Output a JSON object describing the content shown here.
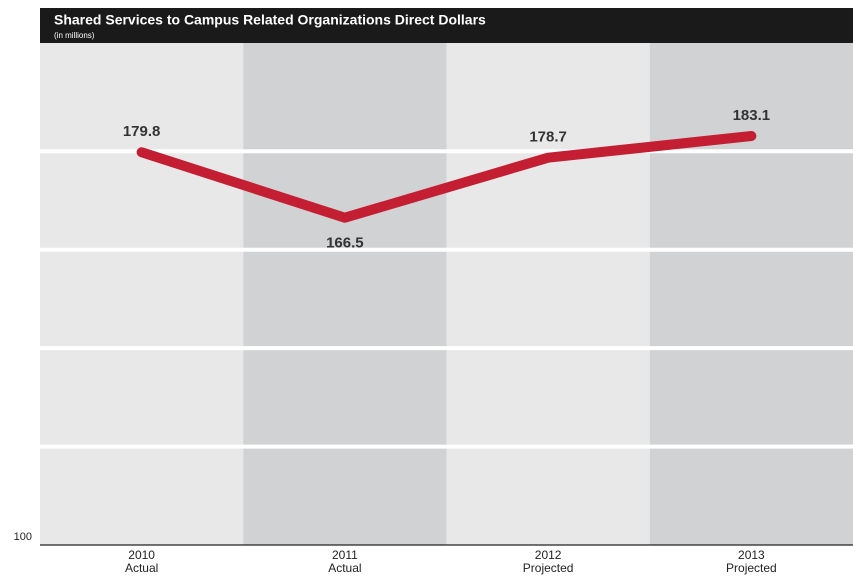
{
  "chart_data": {
    "type": "line",
    "title": "Shared Services to Campus Related Organizations Direct Dollars",
    "subtitle": "(in millions)",
    "categories": [
      "2010",
      "2011",
      "2012",
      "2013"
    ],
    "x_sublabels": [
      "Actual",
      "Actual",
      "Projected",
      "Projected"
    ],
    "values": [
      179.8,
      166.5,
      178.7,
      183.1
    ],
    "color": "#c41e33",
    "ylim": [
      100,
      202
    ],
    "yticks": [
      100
    ],
    "gridlines": [
      120,
      140,
      160,
      180
    ],
    "band_colors": [
      "#e8e8e8",
      "#d1d2d4"
    ]
  }
}
